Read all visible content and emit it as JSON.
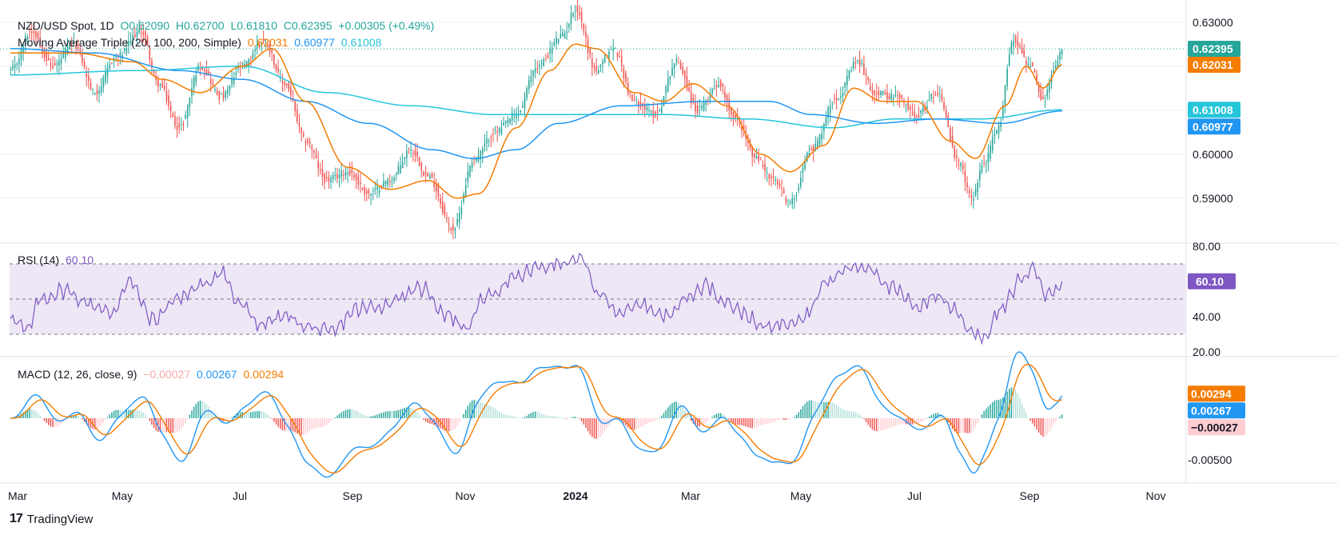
{
  "colors": {
    "up": "#26a69a",
    "down": "#ef5350",
    "ma20": "#f57c00",
    "ma100": "#2196f3",
    "ma200": "#26c6da",
    "rsi": "#7e57c2",
    "rsiBand": "#ede7f6",
    "macd": "#2196f3",
    "signal": "#f57c00",
    "histUpStrong": "#26a69a",
    "histUpWeak": "#b2dfdb",
    "histDownStrong": "#ef5350",
    "histDownWeak": "#ffcdd2",
    "grid": "#f0f3fa",
    "text": "#131722",
    "axisText": "#131722"
  },
  "legend": {
    "symbol": "NZD/USD Spot, 1D",
    "open": "O0.62090",
    "high": "H0.62700",
    "low": "L0.61810",
    "close": "C0.62395",
    "change": "+0.00305 (+0.49%)",
    "ma_label": "Moving Average Triple (20, 100, 200, Simple)",
    "ma20": "0.62031",
    "ma100": "0.60977",
    "ma200": "0.61008",
    "rsi_label": "RSI (14)",
    "rsi_value": "60.10",
    "macd_label": "MACD (12, 26, close, 9)",
    "macd_hist": "−0.00027",
    "macd_value": "0.00267",
    "macd_signal": "0.00294"
  },
  "footer": {
    "brand": "TradingView"
  },
  "chart_data": [
    {
      "type": "candlestick",
      "title": "NZD/USD Spot, 1D",
      "ylim": [
        0.5805,
        0.6325
      ],
      "yticks": [
        "0.63000",
        "0.62000",
        "0.61000",
        "0.60000",
        "0.59000"
      ],
      "ytick_values": [
        0.63,
        0.62,
        0.61,
        0.6,
        0.59
      ],
      "xticks": [
        "Mar",
        "May",
        "Jul",
        "Sep",
        "Nov",
        "2024",
        "Mar",
        "May",
        "Jul",
        "Sep",
        "Nov"
      ],
      "last_price": 0.62395,
      "price_labels": [
        {
          "text": "0.62395",
          "value": 0.62395,
          "color": "#26a69a"
        },
        {
          "text": "0.62031",
          "value": 0.62031,
          "color": "#f57c00"
        },
        {
          "text": "0.61008",
          "value": 0.61008,
          "color": "#26c6da"
        },
        {
          "text": "0.60977",
          "value": 0.60977,
          "color": "#2196f3"
        }
      ],
      "close_anchors": [
        [
          0,
          0.619
        ],
        [
          10,
          0.628
        ],
        [
          20,
          0.62
        ],
        [
          30,
          0.625
        ],
        [
          40,
          0.614
        ],
        [
          50,
          0.622
        ],
        [
          62,
          0.628
        ],
        [
          70,
          0.616
        ],
        [
          80,
          0.606
        ],
        [
          90,
          0.62
        ],
        [
          100,
          0.613
        ],
        [
          110,
          0.62
        ],
        [
          120,
          0.626
        ],
        [
          130,
          0.616
        ],
        [
          140,
          0.603
        ],
        [
          150,
          0.594
        ],
        [
          160,
          0.596
        ],
        [
          170,
          0.591
        ],
        [
          180,
          0.594
        ],
        [
          190,
          0.601
        ],
        [
          198,
          0.595
        ],
        [
          210,
          0.583
        ],
        [
          220,
          0.599
        ],
        [
          230,
          0.605
        ],
        [
          240,
          0.609
        ],
        [
          250,
          0.62
        ],
        [
          262,
          0.627
        ],
        [
          268,
          0.633
        ],
        [
          278,
          0.619
        ],
        [
          286,
          0.624
        ],
        [
          296,
          0.612
        ],
        [
          306,
          0.609
        ],
        [
          316,
          0.621
        ],
        [
          326,
          0.61
        ],
        [
          336,
          0.616
        ],
        [
          344,
          0.608
        ],
        [
          354,
          0.599
        ],
        [
          362,
          0.594
        ],
        [
          370,
          0.589
        ],
        [
          380,
          0.601
        ],
        [
          392,
          0.613
        ],
        [
          402,
          0.621
        ],
        [
          410,
          0.614
        ],
        [
          420,
          0.613
        ],
        [
          430,
          0.609
        ],
        [
          440,
          0.614
        ],
        [
          450,
          0.598
        ],
        [
          456,
          0.59
        ],
        [
          462,
          0.598
        ],
        [
          468,
          0.605
        ],
        [
          476,
          0.626
        ],
        [
          484,
          0.62
        ],
        [
          490,
          0.612
        ],
        [
          496,
          0.62
        ],
        [
          499,
          0.624
        ]
      ],
      "ma_lines": {
        "ma20": [
          [
            0,
            0.623
          ],
          [
            30,
            0.623
          ],
          [
            58,
            0.621
          ],
          [
            72,
            0.617
          ],
          [
            90,
            0.614
          ],
          [
            110,
            0.62
          ],
          [
            124,
            0.624
          ],
          [
            140,
            0.612
          ],
          [
            160,
            0.597
          ],
          [
            180,
            0.592
          ],
          [
            198,
            0.594
          ],
          [
            212,
            0.59
          ],
          [
            222,
            0.591
          ],
          [
            240,
            0.606
          ],
          [
            256,
            0.619
          ],
          [
            268,
            0.625
          ],
          [
            278,
            0.624
          ],
          [
            296,
            0.614
          ],
          [
            310,
            0.612
          ],
          [
            324,
            0.616
          ],
          [
            340,
            0.611
          ],
          [
            356,
            0.6
          ],
          [
            370,
            0.596
          ],
          [
            386,
            0.602
          ],
          [
            400,
            0.615
          ],
          [
            414,
            0.612
          ],
          [
            430,
            0.612
          ],
          [
            446,
            0.603
          ],
          [
            458,
            0.599
          ],
          [
            472,
            0.611
          ],
          [
            482,
            0.62
          ],
          [
            490,
            0.615
          ],
          [
            499,
            0.6203
          ]
        ],
        "ma100": [
          [
            0,
            0.624
          ],
          [
            40,
            0.623
          ],
          [
            80,
            0.619
          ],
          [
            110,
            0.617
          ],
          [
            140,
            0.612
          ],
          [
            170,
            0.607
          ],
          [
            200,
            0.601
          ],
          [
            220,
            0.599
          ],
          [
            240,
            0.601
          ],
          [
            260,
            0.607
          ],
          [
            290,
            0.611
          ],
          [
            330,
            0.612
          ],
          [
            360,
            0.612
          ],
          [
            380,
            0.609
          ],
          [
            410,
            0.607
          ],
          [
            440,
            0.608
          ],
          [
            470,
            0.607
          ],
          [
            499,
            0.6098
          ]
        ],
        "ma200": [
          [
            0,
            0.618
          ],
          [
            60,
            0.619
          ],
          [
            110,
            0.62
          ],
          [
            150,
            0.614
          ],
          [
            190,
            0.611
          ],
          [
            230,
            0.609
          ],
          [
            270,
            0.609
          ],
          [
            310,
            0.609
          ],
          [
            350,
            0.608
          ],
          [
            390,
            0.606
          ],
          [
            420,
            0.608
          ],
          [
            460,
            0.608
          ],
          [
            499,
            0.6101
          ]
        ]
      }
    },
    {
      "type": "line",
      "title": "RSI (14)",
      "ylim": [
        20,
        80
      ],
      "yticks": [
        "80.00",
        "40.00",
        "20.00"
      ],
      "ytick_values": [
        80,
        40,
        20
      ],
      "bands": [
        70,
        50,
        30
      ],
      "last_value": 60.1,
      "anchors": [
        [
          0,
          40
        ],
        [
          8,
          32
        ],
        [
          14,
          50
        ],
        [
          26,
          55
        ],
        [
          36,
          48
        ],
        [
          48,
          42
        ],
        [
          56,
          60
        ],
        [
          68,
          38
        ],
        [
          78,
          50
        ],
        [
          92,
          58
        ],
        [
          100,
          66
        ],
        [
          108,
          48
        ],
        [
          118,
          36
        ],
        [
          130,
          40
        ],
        [
          142,
          34
        ],
        [
          152,
          31
        ],
        [
          164,
          44
        ],
        [
          176,
          46
        ],
        [
          186,
          52
        ],
        [
          196,
          56
        ],
        [
          206,
          42
        ],
        [
          216,
          34
        ],
        [
          226,
          52
        ],
        [
          240,
          62
        ],
        [
          250,
          68
        ],
        [
          262,
          70
        ],
        [
          270,
          73
        ],
        [
          280,
          52
        ],
        [
          290,
          42
        ],
        [
          300,
          47
        ],
        [
          310,
          40
        ],
        [
          320,
          50
        ],
        [
          330,
          58
        ],
        [
          338,
          50
        ],
        [
          348,
          42
        ],
        [
          356,
          34
        ],
        [
          366,
          36
        ],
        [
          376,
          40
        ],
        [
          388,
          60
        ],
        [
          398,
          68
        ],
        [
          408,
          68
        ],
        [
          418,
          56
        ],
        [
          430,
          46
        ],
        [
          440,
          52
        ],
        [
          448,
          44
        ],
        [
          456,
          32
        ],
        [
          462,
          28
        ],
        [
          470,
          44
        ],
        [
          480,
          62
        ],
        [
          486,
          68
        ],
        [
          492,
          52
        ],
        [
          496,
          55
        ],
        [
          499,
          60.1
        ]
      ]
    },
    {
      "type": "macd",
      "title": "MACD (12, 26, close, 9)",
      "ylim": [
        -0.0072,
        0.0068
      ],
      "yticks": [
        "-0.00500"
      ],
      "ytick_values": [
        -0.005
      ],
      "last": {
        "macd": 0.00267,
        "signal": 0.00294,
        "hist": -0.00027
      },
      "price_labels": [
        {
          "text": "0.00294",
          "value": 0.00294,
          "color": "#f57c00"
        },
        {
          "text": "0.00267",
          "value": 0.00267,
          "color": "#2196f3"
        },
        {
          "text": "−0.00027",
          "value": -0.00027,
          "color": "#ffcdd2"
        }
      ]
    }
  ]
}
